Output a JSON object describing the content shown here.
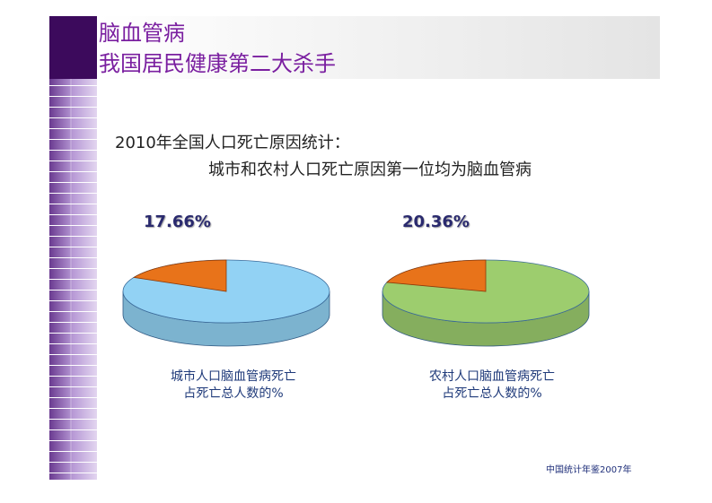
{
  "slide": {
    "title": [
      "脑血管病",
      "我国居民健康第二大杀手"
    ],
    "subtitle": [
      "2010年全国人口死亡原因统计：",
      "城市和农村人口死亡原因第一位均为脑血管病"
    ],
    "source": "中国统计年鉴2007年"
  },
  "chart_data": [
    {
      "type": "pie",
      "values": [
        17.66
      ],
      "value_labels": [
        "17.66%"
      ],
      "color": "#e8731a",
      "base_color": "#92d2f4",
      "caption": [
        "城市人口脑血管病死亡",
        "占死亡总人数的%"
      ]
    },
    {
      "type": "pie",
      "values": [
        20.36
      ],
      "value_labels": [
        "20.36%"
      ],
      "color": "#e8731a",
      "base_color": "#9dcd6e",
      "caption": [
        "农村人口脑血管病死亡",
        "占死亡总人数的%"
      ]
    }
  ]
}
